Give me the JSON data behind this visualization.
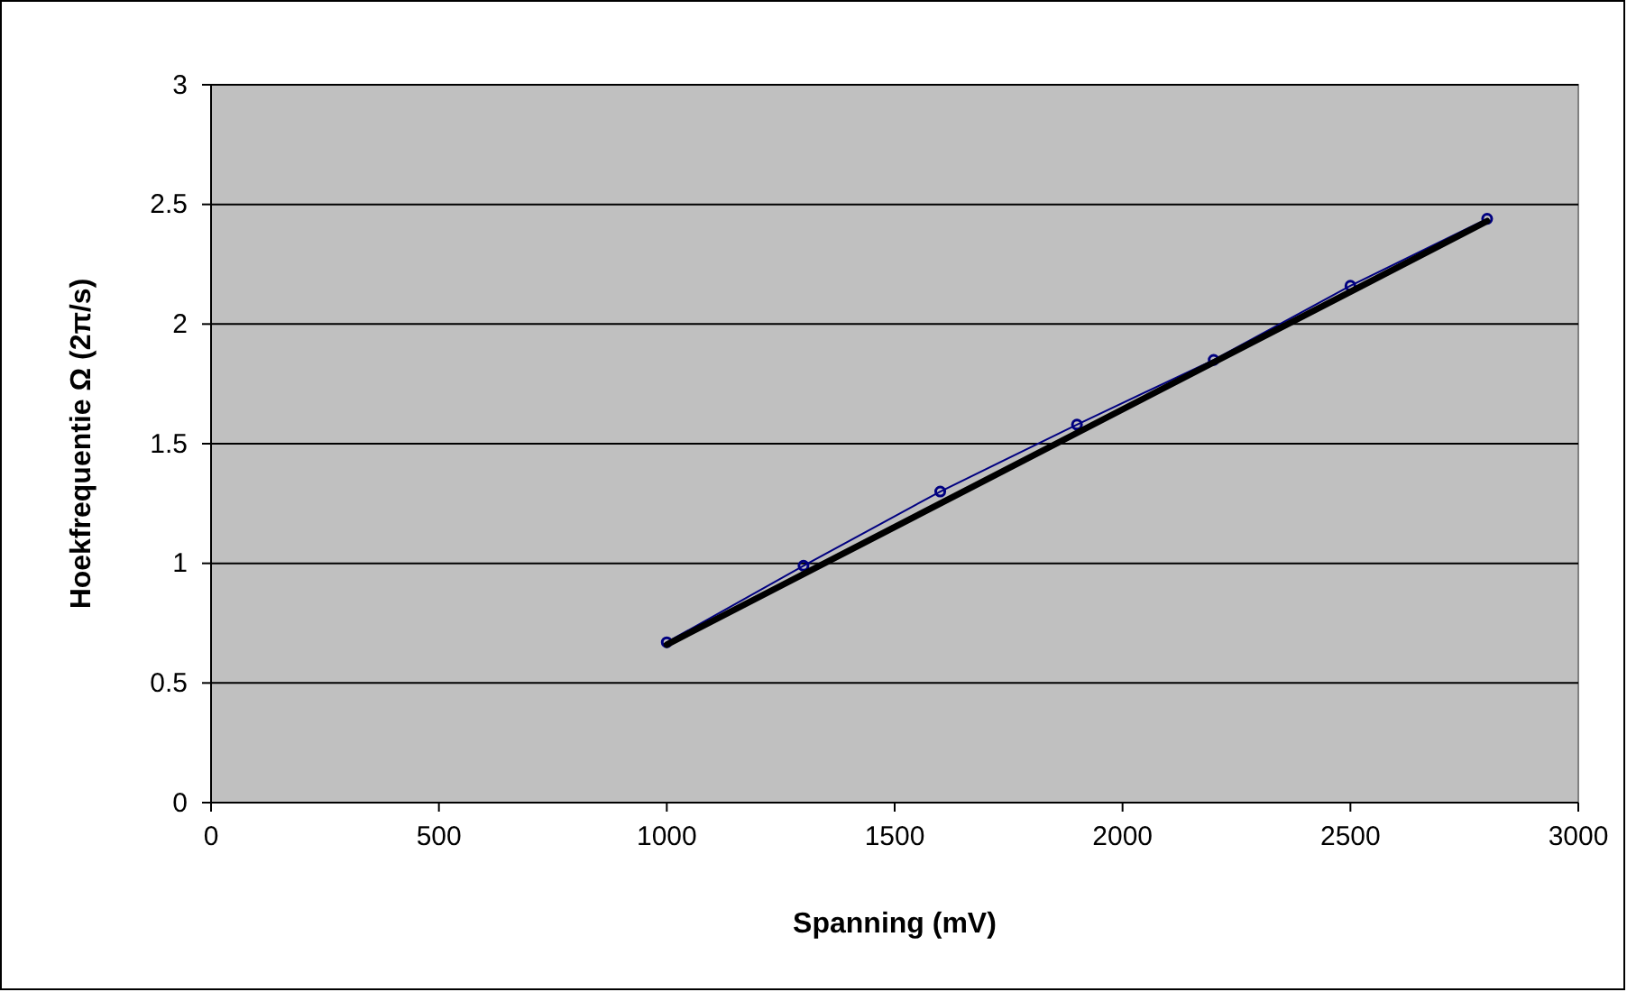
{
  "chart_data": {
    "type": "line",
    "xlabel": "Spanning (mV)",
    "ylabel": "Hoekfrequentie Ω (2π/s)",
    "xlim": [
      0,
      3000
    ],
    "xticks": [
      0,
      500,
      1000,
      1500,
      2000,
      2500,
      3000
    ],
    "ylim": [
      0,
      3
    ],
    "yticks": [
      0,
      0.5,
      1,
      1.5,
      2,
      2.5,
      3
    ],
    "grid": "y",
    "series": [
      {
        "color": "#000080",
        "marker": "circle",
        "line_style": "solid",
        "x": [
          1000,
          1300,
          1600,
          1900,
          2200,
          2500,
          2800
        ],
        "values": [
          0.67,
          0.99,
          1.3,
          1.58,
          1.85,
          2.16,
          2.44
        ]
      },
      {
        "type": "line",
        "color": "#000000",
        "marker": "none",
        "line_style": "solid",
        "x": [
          1000,
          2800
        ],
        "values": [
          0.66,
          2.43
        ]
      }
    ]
  }
}
